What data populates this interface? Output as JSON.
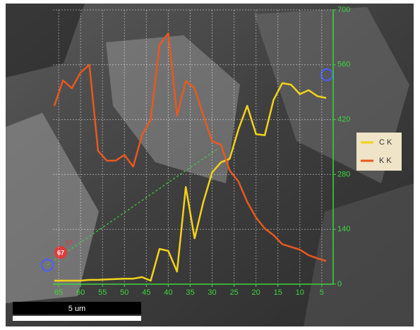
{
  "chart_data": {
    "type": "line",
    "x": [
      66,
      64,
      62,
      60,
      58,
      56,
      54,
      52,
      50,
      48,
      46,
      44,
      42,
      40,
      38,
      36,
      34,
      32,
      30,
      28,
      26,
      24,
      22,
      20,
      18,
      16,
      14,
      12,
      10,
      8,
      6,
      4
    ],
    "series": [
      {
        "name": "C K",
        "color": "#f2d21b",
        "values": [
          9,
          9,
          9,
          9,
          11,
          11,
          12,
          13,
          14,
          14,
          18,
          9,
          90,
          85,
          32,
          248,
          117,
          210,
          285,
          311,
          320,
          395,
          455,
          383,
          380,
          470,
          513,
          509,
          485,
          495,
          480,
          475
        ]
      },
      {
        "name": "K K",
        "color": "#e8581f",
        "values": [
          455,
          520,
          500,
          540,
          560,
          340,
          315,
          315,
          330,
          300,
          380,
          420,
          610,
          640,
          430,
          518,
          500,
          430,
          365,
          356,
          290,
          262,
          210,
          170,
          142,
          125,
          102,
          95,
          88,
          74,
          66,
          59
        ]
      }
    ],
    "xlim": [
      66.3,
      2.4
    ],
    "xticks": [
      65,
      60,
      55,
      50,
      45,
      40,
      35,
      30,
      25,
      20,
      15,
      10,
      5
    ],
    "ylim": [
      0,
      700
    ],
    "yticks": [
      0,
      140,
      280,
      420,
      560,
      700
    ],
    "grid": true,
    "legend": "right",
    "annotations": [
      "67",
      "67"
    ],
    "scale_bar": "5 um"
  }
}
